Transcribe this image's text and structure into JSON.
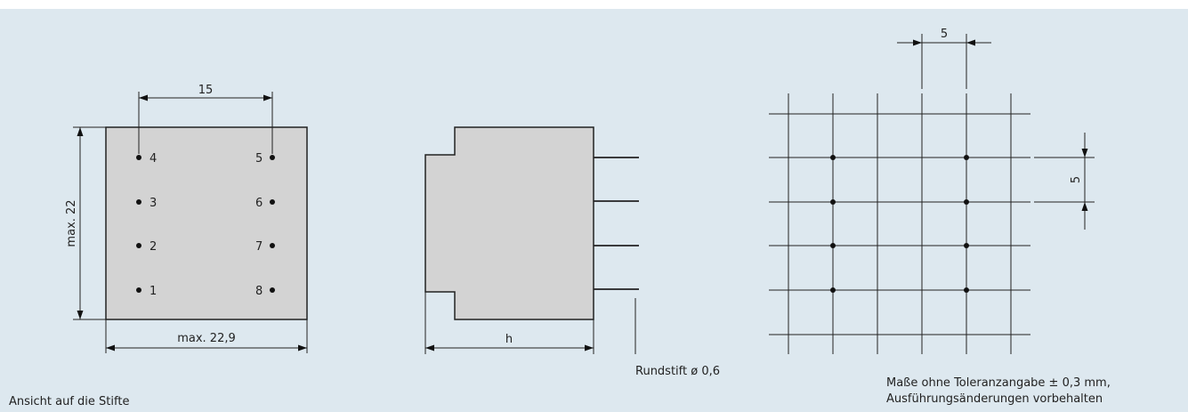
{
  "pin_view": {
    "pin_numbers_left": [
      "4",
      "3",
      "2",
      "1"
    ],
    "pin_numbers_right": [
      "5",
      "6",
      "7",
      "8"
    ],
    "dim_pin_spacing": "15",
    "dim_height": "max. 22",
    "dim_width": "max. 22,9",
    "caption": "Ansicht auf die Stifte"
  },
  "side_view": {
    "dim_height": "h",
    "pin_note": "Rundstift ø 0,6"
  },
  "grid_view": {
    "dim_horizontal": "5",
    "dim_vertical": "5",
    "footnote_line1": "Maße ohne Toleranzangabe ± 0,3 mm,",
    "footnote_line2": "Ausführungsänderungen vorbehalten"
  }
}
